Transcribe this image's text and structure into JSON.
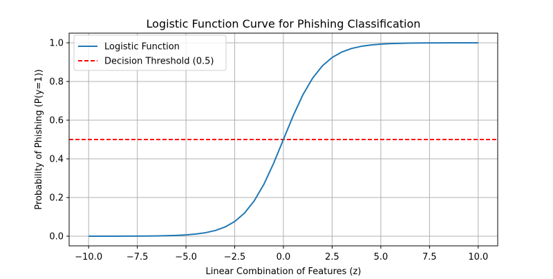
{
  "chart_data": {
    "type": "line",
    "title": "Logistic Function Curve for Phishing Classification",
    "xlabel": "Linear Combination of Features (z)",
    "ylabel": "Probability of Phishing (P(y=1))",
    "xlim": [
      -11,
      11
    ],
    "ylim": [
      -0.05,
      1.05
    ],
    "x_ticks": [
      -10.0,
      -7.5,
      -5.0,
      -2.5,
      0.0,
      2.5,
      5.0,
      7.5,
      10.0
    ],
    "x_tick_labels": [
      "−10.0",
      "−7.5",
      "−5.0",
      "−2.5",
      "0.0",
      "2.5",
      "5.0",
      "7.5",
      "10.0"
    ],
    "y_ticks": [
      0.0,
      0.2,
      0.4,
      0.6,
      0.8,
      1.0
    ],
    "y_tick_labels": [
      "0.0",
      "0.2",
      "0.4",
      "0.6",
      "0.8",
      "1.0"
    ],
    "grid": true,
    "legend_position": "top-left",
    "series": [
      {
        "name": "Logistic Function",
        "color": "#1f77b4",
        "style": "solid",
        "x": [
          -10,
          -9.5,
          -9,
          -8.5,
          -8,
          -7.5,
          -7,
          -6.5,
          -6,
          -5.5,
          -5,
          -4.5,
          -4,
          -3.5,
          -3,
          -2.5,
          -2,
          -1.5,
          -1,
          -0.5,
          0,
          0.5,
          1,
          1.5,
          2,
          2.5,
          3,
          3.5,
          4,
          4.5,
          5,
          5.5,
          6,
          6.5,
          7,
          7.5,
          8,
          8.5,
          9,
          9.5,
          10
        ],
        "y": [
          0.0,
          0.0001,
          0.0001,
          0.0002,
          0.0003,
          0.0006,
          0.0009,
          0.0015,
          0.0025,
          0.0041,
          0.0067,
          0.011,
          0.018,
          0.0293,
          0.0474,
          0.0759,
          0.1192,
          0.1824,
          0.2689,
          0.3775,
          0.5,
          0.6225,
          0.7311,
          0.8176,
          0.8808,
          0.9241,
          0.9526,
          0.9707,
          0.982,
          0.989,
          0.9933,
          0.9959,
          0.9975,
          0.9985,
          0.9991,
          0.9994,
          0.9997,
          0.9998,
          0.9999,
          0.9999,
          1.0
        ]
      },
      {
        "name": "Decision Threshold (0.5)",
        "color": "#ff0000",
        "style": "dashed",
        "type": "hline",
        "y": 0.5
      }
    ]
  }
}
